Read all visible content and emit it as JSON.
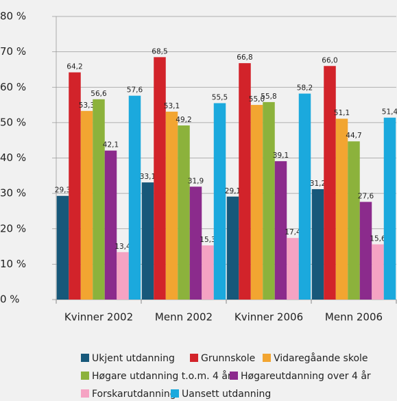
{
  "chart_data": {
    "type": "bar",
    "categories": [
      "Kvinner 2002",
      "Menn 2002",
      "Kvinner 2006",
      "Menn 2006"
    ],
    "series": [
      {
        "name": "Ukjent utdanning",
        "color": "#17587a",
        "values": [
          29.3,
          33.1,
          29.1,
          31.2
        ],
        "value_labels": [
          "29,3",
          "33,1",
          "29,1",
          "31,2"
        ]
      },
      {
        "name": "Grunnskole",
        "color": "#d2232a",
        "values": [
          64.2,
          68.5,
          66.8,
          66.0
        ],
        "value_labels": [
          "64,2",
          "68,5",
          "66,8",
          "66,0"
        ]
      },
      {
        "name": "Vidaregåande skole",
        "color": "#f2a531",
        "values": [
          53.3,
          53.1,
          55.0,
          51.1
        ],
        "value_labels": [
          "53,3",
          "53,1",
          "55,0",
          "51,1"
        ]
      },
      {
        "name": "Høgare utdanning t.o.m. 4 år",
        "color": "#8cb23c",
        "values": [
          56.6,
          49.2,
          55.8,
          44.7
        ],
        "value_labels": [
          "56,6",
          "49,2",
          "55,8",
          "44,7"
        ]
      },
      {
        "name": "Høgareutdanning over 4 år",
        "color": "#8b2b8c",
        "values": [
          42.1,
          31.9,
          39.1,
          27.6
        ],
        "value_labels": [
          "42,1",
          "31,9",
          "39,1",
          "27,6"
        ]
      },
      {
        "name": "Forskarutdanning",
        "color": "#f5a3c3",
        "values": [
          13.4,
          15.3,
          17.4,
          15.6
        ],
        "value_labels": [
          "13,4",
          "15,3",
          "17,4",
          "15,6"
        ]
      },
      {
        "name": "Uansett utdanning",
        "color": "#1ba9dd",
        "values": [
          57.6,
          55.5,
          58.2,
          51.4
        ],
        "value_labels": [
          "57,6",
          "55,5",
          "58,2",
          "51,4"
        ]
      }
    ],
    "ylim": [
      0,
      80
    ],
    "yticks": [
      {
        "value": 0,
        "label": "0 %"
      },
      {
        "value": 10,
        "label": "10 %"
      },
      {
        "value": 20,
        "label": "20 %"
      },
      {
        "value": 30,
        "label": "30 %"
      },
      {
        "value": 40,
        "label": "40 %"
      },
      {
        "value": 50,
        "label": "50 %"
      },
      {
        "value": 60,
        "label": "60 %"
      },
      {
        "value": 70,
        "label": "70 %"
      },
      {
        "value": 80,
        "label": "80 %"
      }
    ],
    "grid": true
  }
}
